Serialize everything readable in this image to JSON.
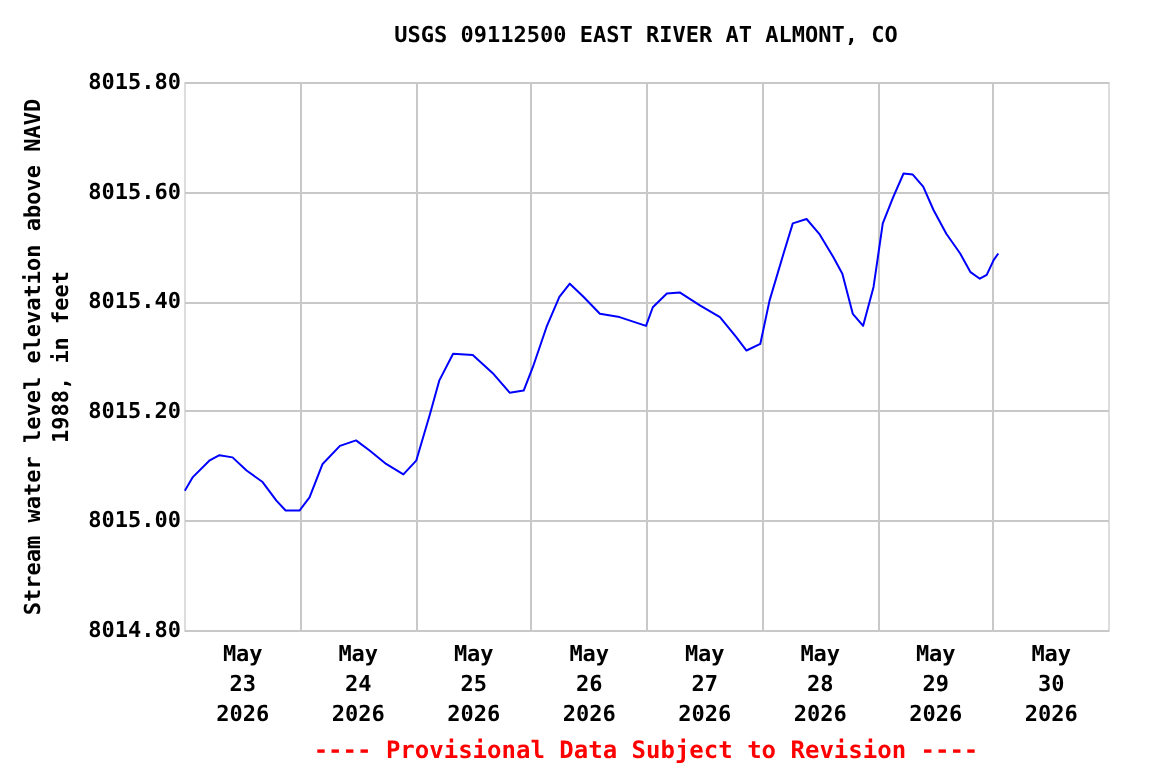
{
  "chart_data": {
    "type": "line",
    "title": "USGS 09112500 EAST RIVER AT ALMONT, CO",
    "ylabel": "Stream water level elevation above NAVD 1988, in feet",
    "annotations": [
      "---- Provisional Data Subject to Revision ----"
    ],
    "x": [
      "2026-05-23T00:10",
      "2026-05-23T01:50",
      "2026-05-23T05:15",
      "2026-05-23T07:22",
      "2026-05-23T10:05",
      "2026-05-23T13:00",
      "2026-05-23T16:20",
      "2026-05-23T19:12",
      "2026-05-23T21:07",
      "2026-05-24T00:00",
      "2026-05-24T02:05",
      "2026-05-24T04:48",
      "2026-05-24T08:24",
      "2026-05-24T11:45",
      "2026-05-24T14:38",
      "2026-05-24T18:00",
      "2026-05-24T21:35",
      "2026-05-25T00:15",
      "2026-05-25T03:07",
      "2026-05-25T05:02",
      "2026-05-25T07:55",
      "2026-05-25T12:00",
      "2026-05-25T16:20",
      "2026-05-25T19:40",
      "2026-05-25T22:35",
      "2026-05-26T00:30",
      "2026-05-26T03:20",
      "2026-05-26T06:00",
      "2026-05-26T08:10",
      "2026-05-26T11:00",
      "2026-05-26T14:25",
      "2026-05-26T18:30",
      "2026-05-27T00:00",
      "2026-05-27T01:25",
      "2026-05-27T04:20",
      "2026-05-27T07:00",
      "2026-05-27T11:17",
      "2026-05-27T15:22",
      "2026-05-27T18:43",
      "2026-05-27T20:53",
      "2026-05-27T23:45",
      "2026-05-28T01:40",
      "2026-05-28T04:35",
      "2026-05-28T06:30",
      "2026-05-28T09:22",
      "2026-05-28T12:00",
      "2026-05-28T14:53",
      "2026-05-28T16:48",
      "2026-05-28T18:58",
      "2026-05-28T21:07",
      "2026-05-28T23:17",
      "2026-05-29T01:12",
      "2026-05-29T03:22",
      "2026-05-29T05:31",
      "2026-05-29T07:26",
      "2026-05-29T09:36",
      "2026-05-29T11:46",
      "2026-05-29T14:24",
      "2026-05-29T17:17",
      "2026-05-29T19:26",
      "2026-05-29T21:22",
      "2026-05-29T22:48",
      "2026-05-30T00:14",
      "2026-05-30T01:12"
    ],
    "series": [
      {
        "color": "#0000ff",
        "values": [
          8015.054,
          8015.079,
          8015.109,
          8015.119,
          8015.115,
          8015.091,
          8015.07,
          8015.036,
          8015.018,
          8015.018,
          8015.042,
          8015.103,
          8015.136,
          8015.146,
          8015.127,
          8015.103,
          8015.084,
          8015.109,
          8015.194,
          8015.255,
          8015.304,
          8015.302,
          8015.267,
          8015.233,
          8015.237,
          8015.28,
          8015.353,
          8015.408,
          8015.432,
          8015.408,
          8015.377,
          8015.371,
          8015.355,
          8015.389,
          8015.414,
          8015.416,
          8015.392,
          8015.371,
          8015.335,
          8015.31,
          8015.322,
          8015.401,
          8015.487,
          8015.542,
          8015.55,
          8015.523,
          8015.481,
          8015.45,
          8015.377,
          8015.355,
          8015.426,
          8015.542,
          8015.59,
          8015.633,
          8015.631,
          8015.609,
          8015.566,
          8015.523,
          8015.487,
          8015.453,
          8015.441,
          8015.448,
          8015.475,
          8015.487
        ]
      }
    ],
    "xlim": [
      "2026-05-23T00:00",
      "2026-05-31T00:00"
    ],
    "xticks": [
      {
        "value": "2026-05-23T12:00",
        "label": "May\n23\n2026"
      },
      {
        "value": "2026-05-24T12:00",
        "label": "May\n24\n2026"
      },
      {
        "value": "2026-05-25T12:00",
        "label": "May\n25\n2026"
      },
      {
        "value": "2026-05-26T12:00",
        "label": "May\n26\n2026"
      },
      {
        "value": "2026-05-27T12:00",
        "label": "May\n27\n2026"
      },
      {
        "value": "2026-05-28T12:00",
        "label": "May\n28\n2026"
      },
      {
        "value": "2026-05-29T12:00",
        "label": "May\n29\n2026"
      },
      {
        "value": "2026-05-30T12:00",
        "label": "May\n30\n2026"
      },
      {
        "value": "2026-05-24T00:00",
        "label": null
      },
      {
        "value": "2026-05-25T00:00",
        "label": null
      },
      {
        "value": "2026-05-26T00:00",
        "label": null
      },
      {
        "value": "2026-05-27T00:00",
        "label": null
      },
      {
        "value": "2026-05-28T00:00",
        "label": null
      },
      {
        "value": "2026-05-29T00:00",
        "label": null
      },
      {
        "value": "2026-05-30T00:00",
        "label": null
      }
    ],
    "ylim": [
      8014.8,
      8015.8
    ],
    "yticks": [
      {
        "value": 8014.8,
        "label": "8014.80"
      },
      {
        "value": 8015.0,
        "label": "8015.00"
      },
      {
        "value": 8015.2,
        "label": "8015.20"
      },
      {
        "value": 8015.4,
        "label": "8015.40"
      },
      {
        "value": 8015.6,
        "label": "8015.60"
      },
      {
        "value": 8015.8,
        "label": "8015.80"
      }
    ],
    "grid": true,
    "legend": false,
    "marker": "none",
    "line_style": "solid"
  }
}
